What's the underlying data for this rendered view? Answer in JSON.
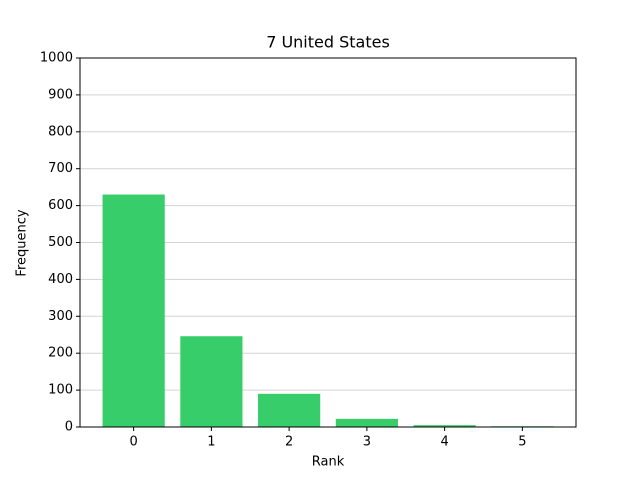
{
  "chart_data": {
    "type": "bar",
    "title": "7 United States",
    "xlabel": "Rank",
    "ylabel": "Frequency",
    "x": [
      0,
      1,
      2,
      3,
      4,
      5
    ],
    "values": [
      630,
      246,
      90,
      22,
      5,
      2
    ],
    "color": "#37cd6a",
    "xlim": [
      -0.69,
      5.69
    ],
    "xticks": [
      0,
      1,
      2,
      3,
      4,
      5
    ],
    "ylim": [
      0,
      1000
    ],
    "yticks": [
      0,
      100,
      200,
      300,
      400,
      500,
      600,
      700,
      800,
      900,
      1000
    ],
    "grid": true
  }
}
